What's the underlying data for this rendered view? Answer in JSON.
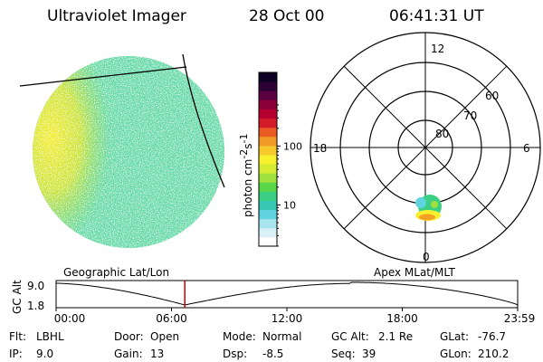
{
  "header": {
    "instrument": "Ultraviolet Imager",
    "date": "28 Oct 00",
    "time": "06:41:31 UT"
  },
  "colorbar": {
    "label": "photon cm",
    "label_sup1": "-2",
    "label_mid": "s",
    "label_sup2": "-1",
    "ticks": [
      {
        "value": 100,
        "text": "100"
      },
      {
        "value": 10,
        "text": "10"
      }
    ],
    "colors": [
      "#ffffff",
      "#d9f0f7",
      "#a8e4ef",
      "#5fd3df",
      "#36c7b5",
      "#3ccf84",
      "#5ad64a",
      "#9ee03c",
      "#d6ec34",
      "#f8f02e",
      "#f7c92a",
      "#f29a26",
      "#ea5a23",
      "#d41b2a",
      "#b5002f",
      "#8b0038",
      "#5a0040",
      "#2b0033",
      "#0d0022"
    ]
  },
  "polar_plot": {
    "mlt_labels": {
      "top": "12",
      "bottom": "0",
      "left": "18",
      "right": "6"
    },
    "lat_labels": [
      "80",
      "70",
      "60"
    ]
  },
  "timeline": {
    "y_axis_title": "GC Alt",
    "y_ticks": [
      "9.0",
      "1.8"
    ],
    "left_caption": "Geographic Lat/Lon",
    "right_caption": "Apex  MLat/MLT",
    "x_ticks": [
      "00:00",
      "06:00",
      "12:00",
      "18:00",
      "23:59"
    ],
    "current_time_fraction": 0.2788
  },
  "status": {
    "col1": [
      {
        "key": "Flt:",
        "val": "LBHL"
      },
      {
        "key": "IP:",
        "val": "9.0"
      }
    ],
    "col2": [
      {
        "key": "Door:",
        "val": "Open"
      },
      {
        "key": "Gain:",
        "val": "13"
      }
    ],
    "col3": [
      {
        "key": "Mode:",
        "val": "Normal"
      },
      {
        "key": "Dsp:",
        "val": "-8.5"
      }
    ],
    "col4": [
      {
        "key": "GC Alt:",
        "val": "2.1 Re"
      },
      {
        "key": "Seq:",
        "val": "39"
      }
    ],
    "col5": [
      {
        "key": "GLat:",
        "val": "-76.7"
      },
      {
        "key": "GLon:",
        "val": "210.2"
      }
    ]
  }
}
